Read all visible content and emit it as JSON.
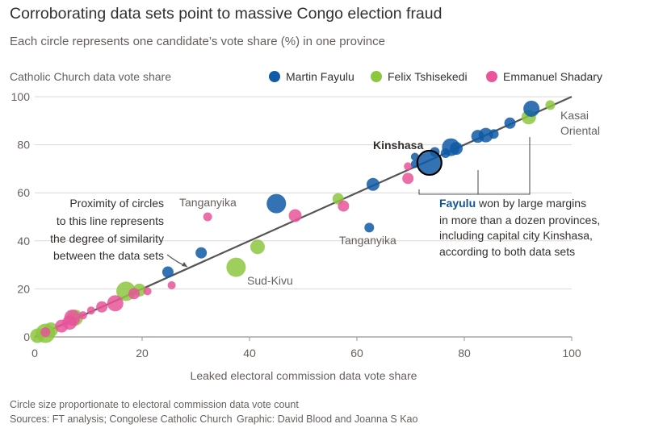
{
  "title": "Corroborating data sets point to massive Congo election fraud",
  "subtitle": "Each circle represents one candidate’s vote share (%) in one province",
  "footer": {
    "note": "Circle size proportionate to electoral commission data vote count",
    "sources": "Sources: FT analysis; Congolese Catholic Church",
    "graphic": "Graphic: David Blood and Joanna S Kao"
  },
  "annotations": {
    "proximity": [
      "Proximity of circles",
      "to this line represents",
      "the degree of similarity",
      "between the data sets"
    ],
    "fayulu_word": "Fayulu",
    "fayulu_rest_first": " won by large margins",
    "fayulu_lines": [
      "in more than a dozen provinces,",
      "including capital city Kinshasa,",
      "according to both data sets"
    ],
    "kinshasa": "Kinshasa",
    "tanganyika_top": "Tanganyika",
    "tanganyika_mid": "Tanganyika",
    "sud_kivu": "Sud-Kivu",
    "kasai_oriental": [
      "Kasai",
      "Oriental"
    ]
  },
  "colors": {
    "fayulu": "#0f5ba7",
    "tshisekedi": "#8dc63f",
    "shadary": "#e8559a",
    "line": "#555555",
    "highlight": "#000000"
  },
  "chart_data": {
    "type": "scatter",
    "xlabel": "Leaked electoral commission data vote share",
    "ylabel": "Catholic Church data vote share",
    "xlim": [
      0,
      100
    ],
    "ylim": [
      0,
      100
    ],
    "xticks": [
      0,
      20,
      40,
      60,
      80,
      100
    ],
    "yticks": [
      0,
      20,
      40,
      60,
      80,
      100
    ],
    "grid": "horizontal",
    "legend_position": "top",
    "reference_line": [
      [
        0,
        0
      ],
      [
        100,
        100
      ]
    ],
    "series": [
      {
        "name": "Martin Fayulu",
        "color": "#0f5ba7",
        "points": [
          {
            "x": 73.5,
            "y": 72.5,
            "size": 14,
            "label": "Kinshasa"
          },
          {
            "x": 92.5,
            "y": 95,
            "size": 10
          },
          {
            "x": 88.5,
            "y": 89,
            "size": 7
          },
          {
            "x": 84,
            "y": 84,
            "size": 9
          },
          {
            "x": 82.5,
            "y": 83.5,
            "size": 8
          },
          {
            "x": 85.5,
            "y": 84.5,
            "size": 6
          },
          {
            "x": 78.5,
            "y": 78.5,
            "size": 8
          },
          {
            "x": 77.5,
            "y": 79,
            "size": 11
          },
          {
            "x": 76.5,
            "y": 76.5,
            "size": 6
          },
          {
            "x": 74.5,
            "y": 77,
            "size": 6
          },
          {
            "x": 70.8,
            "y": 75,
            "size": 5
          },
          {
            "x": 70.8,
            "y": 72,
            "size": 5
          },
          {
            "x": 63,
            "y": 63.5,
            "size": 8
          },
          {
            "x": 62.3,
            "y": 45.5,
            "size": 6
          },
          {
            "x": 45,
            "y": 55.5,
            "size": 12
          },
          {
            "x": 31,
            "y": 35,
            "size": 7
          },
          {
            "x": 24.8,
            "y": 27,
            "size": 7
          }
        ]
      },
      {
        "name": "Felix Tshisekedi",
        "color": "#8dc63f",
        "points": [
          {
            "x": 96,
            "y": 96.5,
            "size": 6
          },
          {
            "x": 92,
            "y": 91.5,
            "size": 9
          },
          {
            "x": 56.5,
            "y": 57.5,
            "size": 7
          },
          {
            "x": 41.5,
            "y": 37.5,
            "size": 9
          },
          {
            "x": 37.5,
            "y": 29,
            "size": 12,
            "label": "Sud-Kivu"
          },
          {
            "x": 17,
            "y": 19,
            "size": 12
          },
          {
            "x": 19.5,
            "y": 19.5,
            "size": 8
          },
          {
            "x": 7.5,
            "y": 8,
            "size": 10
          },
          {
            "x": 3,
            "y": 3,
            "size": 9
          },
          {
            "x": 2,
            "y": 1.5,
            "size": 12
          },
          {
            "x": 0.5,
            "y": 0.5,
            "size": 9
          }
        ]
      },
      {
        "name": "Emmanuel Shadary",
        "color": "#e8559a",
        "points": [
          {
            "x": 69.5,
            "y": 66,
            "size": 7
          },
          {
            "x": 69.5,
            "y": 71,
            "size": 5
          },
          {
            "x": 57.5,
            "y": 54.5,
            "size": 7
          },
          {
            "x": 48.5,
            "y": 50.5,
            "size": 8
          },
          {
            "x": 32.2,
            "y": 50,
            "size": 5.5,
            "label": "Tanganyika"
          },
          {
            "x": 25.5,
            "y": 21.5,
            "size": 5
          },
          {
            "x": 21,
            "y": 19,
            "size": 5
          },
          {
            "x": 18.5,
            "y": 18,
            "size": 7
          },
          {
            "x": 15,
            "y": 14,
            "size": 10
          },
          {
            "x": 12.5,
            "y": 12.5,
            "size": 7
          },
          {
            "x": 10.5,
            "y": 11,
            "size": 5
          },
          {
            "x": 9,
            "y": 9,
            "size": 5
          },
          {
            "x": 7,
            "y": 8,
            "size": 10
          },
          {
            "x": 6.5,
            "y": 6,
            "size": 9
          },
          {
            "x": 5,
            "y": 4.5,
            "size": 8
          },
          {
            "x": 2,
            "y": 2,
            "size": 6
          }
        ]
      }
    ]
  }
}
